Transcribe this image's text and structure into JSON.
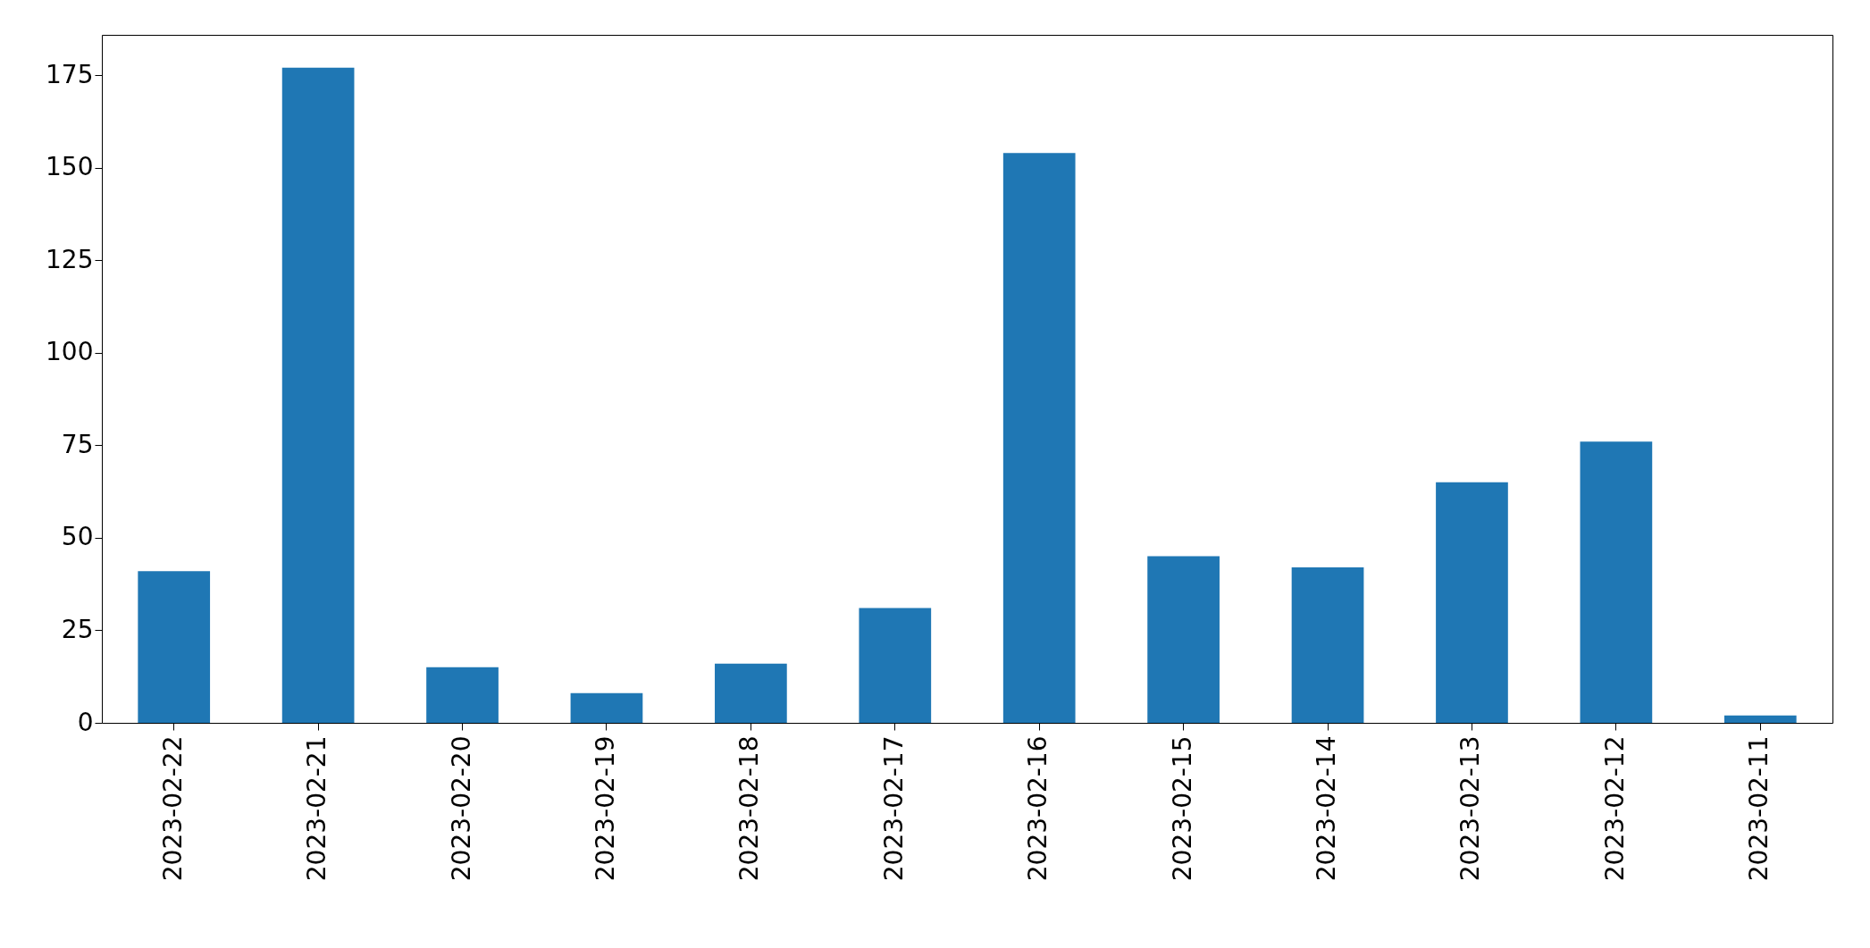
{
  "chart_data": {
    "type": "bar",
    "categories": [
      "2023-02-22",
      "2023-02-21",
      "2023-02-20",
      "2023-02-19",
      "2023-02-18",
      "2023-02-17",
      "2023-02-16",
      "2023-02-15",
      "2023-02-14",
      "2023-02-13",
      "2023-02-12",
      "2023-02-11"
    ],
    "values": [
      41,
      177,
      15,
      8,
      16,
      31,
      154,
      45,
      42,
      65,
      76,
      2
    ],
    "color": "#1f77b4",
    "ylim": [
      0,
      185.9
    ],
    "yticks": [
      0,
      25,
      50,
      75,
      100,
      125,
      150,
      175
    ],
    "grid": false
  }
}
